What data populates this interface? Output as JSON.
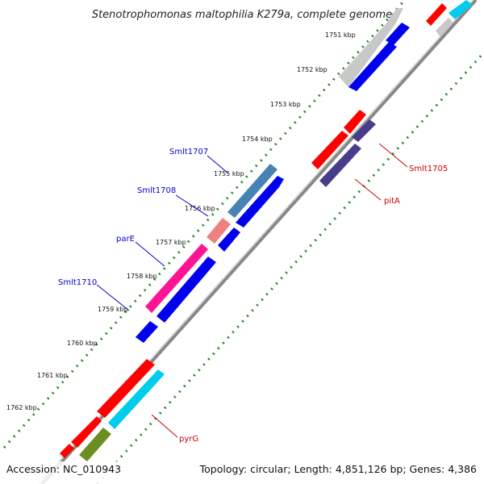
{
  "title": "Stenotrophomonas maltophilia K279a, complete genome",
  "footer": {
    "accession": "Accession: NC_010943",
    "topology": "Topology: circular; Length: 4,851,126 bp; Genes: 4,386"
  },
  "ticks": [
    "1751 kbp",
    "1752 kbp",
    "1753 kbp",
    "1754 kbp",
    "1755 kbp",
    "1756 kbp",
    "1757 kbp",
    "1758 kbp",
    "1759 kbp",
    "1760 kbp",
    "1761 kbp",
    "1762 kbp"
  ],
  "gene_labels": [
    {
      "text": "Smlt1707",
      "strand": "reverse",
      "color": "#0000cc"
    },
    {
      "text": "Smlt1708",
      "strand": "reverse",
      "color": "#0000cc"
    },
    {
      "text": "parE",
      "strand": "reverse",
      "color": "#0000cc"
    },
    {
      "text": "Smlt1710",
      "strand": "reverse",
      "color": "#0000cc"
    },
    {
      "text": "Smlt1705",
      "strand": "forward",
      "color": "#cc0000"
    },
    {
      "text": "pitA",
      "strand": "forward",
      "color": "#cc0000"
    },
    {
      "text": "pyrG",
      "strand": "forward",
      "color": "#cc0000"
    }
  ],
  "colors": {
    "backbone": "#888888",
    "ticks": "#228822",
    "reverse_cds": "#0000ee",
    "forward_cds": "#ff0000",
    "grey_feature": "#c8c8c8",
    "steelblue_feature": "#4682b4",
    "pink_feature": "#f08080",
    "magenta_feature": "#ff1493",
    "darkslate_feature": "#483d8b",
    "cyan_feature": "#00ccee",
    "olive_feature": "#6b8e23"
  }
}
